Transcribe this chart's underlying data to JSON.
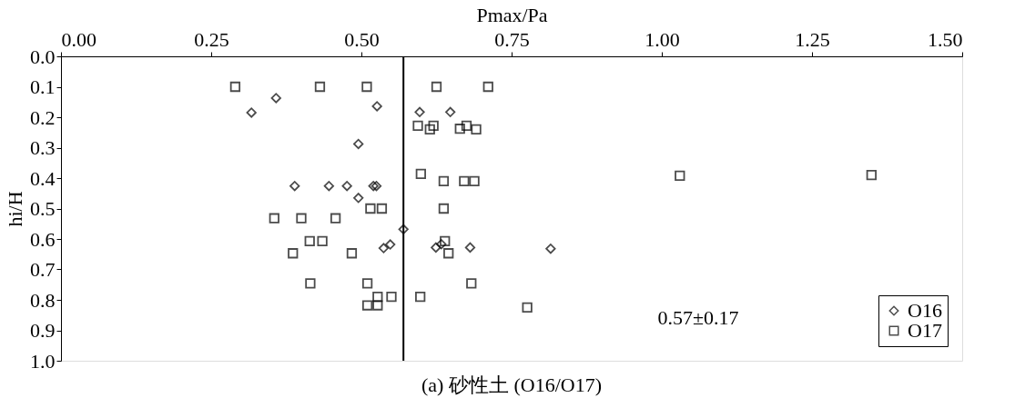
{
  "chart_data": {
    "type": "scatter",
    "title": "(a) 砂性土 (O16/O17)",
    "xlabel": "Pmax/Pa",
    "ylabel": "hi/H",
    "series": [
      {
        "name": "O16",
        "color": "#000000",
        "marker": "diamond",
        "x": [
          0.317,
          0.358,
          0.526,
          0.597,
          0.648,
          0.495,
          0.389,
          0.446,
          0.476,
          0.52,
          0.525,
          0.495,
          0.57,
          0.537,
          0.548,
          0.624,
          0.633,
          0.681,
          0.815
        ],
        "values": [
          0.185,
          0.137,
          0.164,
          0.183,
          0.183,
          0.288,
          0.426,
          0.426,
          0.426,
          0.426,
          0.426,
          0.465,
          0.568,
          0.63,
          0.618,
          0.628,
          0.617,
          0.628,
          0.632
        ]
      },
      {
        "name": "O17",
        "color": "#000000",
        "marker": "square",
        "x": [
          0.29,
          0.431,
          0.509,
          0.625,
          0.711,
          0.594,
          0.62,
          0.614,
          0.664,
          0.675,
          0.691,
          0.599,
          0.637,
          0.671,
          0.688,
          1.03,
          1.349,
          0.515,
          0.534,
          0.637,
          0.355,
          0.4,
          0.457,
          0.414,
          0.435,
          0.639,
          0.386,
          0.484,
          0.645,
          0.415,
          0.51,
          0.683,
          0.527,
          0.55,
          0.598,
          0.51,
          0.527,
          0.776
        ],
        "values": [
          0.1,
          0.1,
          0.1,
          0.1,
          0.1,
          0.228,
          0.228,
          0.24,
          0.238,
          0.228,
          0.24,
          0.386,
          0.41,
          0.41,
          0.41,
          0.392,
          0.39,
          0.5,
          0.5,
          0.5,
          0.532,
          0.532,
          0.532,
          0.607,
          0.607,
          0.607,
          0.647,
          0.647,
          0.647,
          0.746,
          0.746,
          0.746,
          0.79,
          0.79,
          0.79,
          0.818,
          0.818,
          0.825
        ]
      }
    ],
    "xlim": [
      0,
      1.5
    ],
    "xticks": [
      {
        "value": 0,
        "label": "0.00"
      },
      0.25,
      {
        "value": 0.5,
        "label": "0.50"
      },
      0.75,
      {
        "value": 1,
        "label": "1.00"
      },
      1.25,
      {
        "value": 1.5,
        "label": "1.50"
      }
    ],
    "ylim": [
      1.0,
      0.0
    ],
    "yticks": [
      {
        "value": 0,
        "label": "0.0"
      },
      0.1,
      0.2,
      0.3,
      0.4,
      0.5,
      0.6,
      0.7,
      0.8,
      0.9,
      {
        "value": 1,
        "label": "1.0"
      }
    ],
    "ref_lines": [
      {
        "axis": "x",
        "value": 0.57,
        "color": "#000000"
      }
    ],
    "annotations": [
      "0.57±0.17"
    ],
    "legend": "bottom right",
    "grid": false
  }
}
